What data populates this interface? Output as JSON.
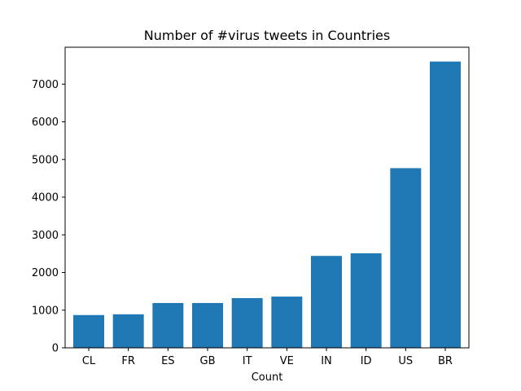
{
  "chart_data": {
    "type": "bar",
    "title": "Number of #virus tweets in Countries",
    "xlabel": "Count",
    "ylabel": "",
    "categories": [
      "CL",
      "FR",
      "ES",
      "GB",
      "IT",
      "VE",
      "IN",
      "ID",
      "US",
      "BR"
    ],
    "values": [
      870,
      890,
      1190,
      1190,
      1320,
      1360,
      2440,
      2510,
      4770,
      7600
    ],
    "ylim": [
      0,
      7980
    ],
    "yticks": [
      0,
      1000,
      2000,
      3000,
      4000,
      5000,
      6000,
      7000
    ],
    "grid": false,
    "legend": "none",
    "bar_color": "#1f77b4"
  }
}
